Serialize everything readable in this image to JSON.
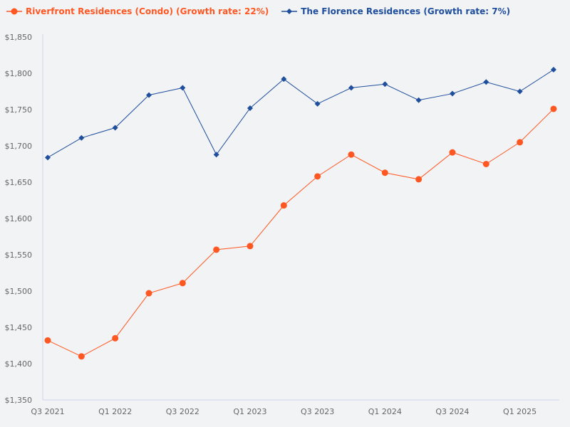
{
  "chart_data": {
    "type": "line",
    "title": "",
    "xlabel": "",
    "ylabel": "",
    "ylim": [
      1350,
      1850
    ],
    "y_ticks": [
      "$1,350",
      "$1,400",
      "$1,450",
      "$1,500",
      "$1,550",
      "$1,600",
      "$1,650",
      "$1,700",
      "$1,750",
      "$1,800",
      "$1,850"
    ],
    "y_tick_values": [
      1350,
      1400,
      1450,
      1500,
      1550,
      1600,
      1650,
      1700,
      1750,
      1800,
      1850
    ],
    "x": [
      "Q3 2021",
      "Q4 2021",
      "Q1 2022",
      "Q2 2022",
      "Q3 2022",
      "Q4 2022",
      "Q1 2023",
      "Q2 2023",
      "Q3 2023",
      "Q4 2023",
      "Q1 2024",
      "Q2 2024",
      "Q3 2024",
      "Q4 2024",
      "Q1 2025",
      "Q2 2025"
    ],
    "x_tick_labels": [
      "Q3 2021",
      "Q1 2022",
      "Q3 2022",
      "Q1 2023",
      "Q3 2023",
      "Q1 2024",
      "Q3 2024",
      "Q1 2025"
    ],
    "grid": false,
    "legend_position": "top-left",
    "series": [
      {
        "name": "Riverfront Residences (Condo) (Growth rate: 22%)",
        "color": "#ff5722",
        "marker": "circle",
        "values": [
          1432,
          1410,
          1435,
          1497,
          1511,
          1557,
          1562,
          1618,
          1658,
          1688,
          1663,
          1654,
          1691,
          1675,
          1705,
          1751
        ]
      },
      {
        "name": "The Florence Residences (Growth rate: 7%)",
        "color": "#1f4e9c",
        "marker": "diamond",
        "values": [
          1684,
          1711,
          1725,
          1770,
          1780,
          1688,
          1752,
          1792,
          1758,
          1780,
          1785,
          1763,
          1772,
          1788,
          1775,
          1805
        ]
      }
    ]
  }
}
